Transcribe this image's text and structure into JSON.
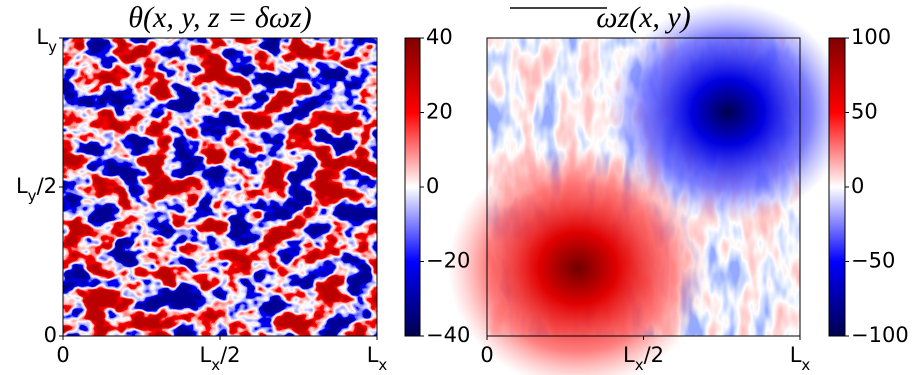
{
  "chart_data": [
    {
      "type": "heatmap",
      "title": "θ(x, y, z = δωz)",
      "xlim": [
        0,
        1
      ],
      "xticks": [
        {
          "value": 0,
          "label": "0"
        },
        {
          "value": 0.5,
          "label": "Lx/2"
        },
        {
          "value": 1,
          "label": "Lx"
        }
      ],
      "ylim": [
        0,
        1
      ],
      "yticks": [
        {
          "value": 0,
          "label": "0"
        },
        {
          "value": 0.5,
          "label": "Ly/2"
        },
        {
          "value": 1,
          "label": "Ly"
        }
      ],
      "colorbar": {
        "lim": [
          -40,
          40
        ],
        "ticks": [
          {
            "value": -40,
            "label": "−40"
          },
          {
            "value": -20,
            "label": "−20"
          },
          0,
          20,
          40
        ]
      }
    },
    {
      "type": "heatmap",
      "title": "ωz(x, y)",
      "xlim": [
        0,
        1
      ],
      "xticks": [
        {
          "value": 0,
          "label": "0"
        },
        {
          "value": 0.5,
          "label": "Lx/2"
        },
        {
          "value": 1,
          "label": "Lx"
        }
      ],
      "colorbar": {
        "lim": [
          -100,
          100
        ],
        "ticks": [
          {
            "value": -100,
            "label": "−100"
          },
          {
            "value": -50,
            "label": "−50"
          },
          0,
          50,
          100
        ]
      }
    }
  ]
}
